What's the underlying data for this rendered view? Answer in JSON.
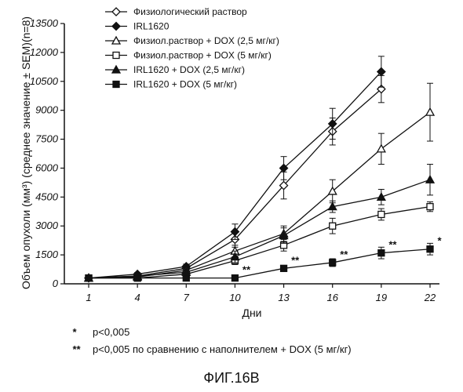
{
  "chart_data": {
    "type": "line",
    "xlabel": "Дни",
    "ylabel": "Объем опухоли (мм³) (среднее значение ± SEM)(n=8)",
    "x": [
      1,
      4,
      7,
      10,
      13,
      16,
      19,
      22
    ],
    "xticks": [
      "1",
      "4",
      "7",
      "10",
      "13",
      "16",
      "19",
      "22"
    ],
    "ylim": [
      0,
      13500
    ],
    "yticks": [
      "0",
      "1500",
      "3000",
      "4500",
      "6000",
      "7500",
      "9000",
      "10500",
      "12000",
      "13500"
    ],
    "legend_position": "top-left",
    "grid": false,
    "series": [
      {
        "name": "Физиологический раствор",
        "marker": "diamond-open",
        "values": [
          300,
          400,
          800,
          2300,
          5100,
          7900,
          10100,
          null
        ],
        "errors": [
          50,
          80,
          120,
          400,
          700,
          700,
          700,
          null
        ]
      },
      {
        "name": "IRL1620",
        "marker": "diamond-filled",
        "values": [
          300,
          500,
          900,
          2700,
          6000,
          8300,
          11000,
          null
        ],
        "errors": [
          50,
          80,
          120,
          400,
          600,
          800,
          800,
          null
        ]
      },
      {
        "name": "Физиол.раствор + DOX (2,5 мг/кг)",
        "marker": "triangle-open",
        "values": [
          300,
          350,
          700,
          1700,
          2600,
          4800,
          7000,
          8900
        ],
        "errors": [
          50,
          60,
          100,
          300,
          400,
          600,
          800,
          1500
        ]
      },
      {
        "name": "Физиол.раствор + DOX (5 мг/кг)",
        "marker": "square-open",
        "values": [
          300,
          300,
          500,
          1200,
          2000,
          3000,
          3600,
          4000
        ],
        "errors": [
          50,
          50,
          100,
          200,
          300,
          400,
          300,
          250
        ]
      },
      {
        "name": "IRL1620 + DOX (2,5 мг/кг)",
        "marker": "triangle-filled",
        "values": [
          300,
          400,
          600,
          1400,
          2500,
          4000,
          4500,
          5400
        ],
        "errors": [
          50,
          60,
          100,
          300,
          400,
          300,
          400,
          800
        ]
      },
      {
        "name": "IRL1620 + DOX (5 мг/кг)",
        "marker": "square-filled",
        "values": [
          300,
          300,
          300,
          300,
          800,
          1100,
          1600,
          1800
        ],
        "errors": [
          40,
          40,
          60,
          60,
          100,
          200,
          300,
          300
        ]
      }
    ],
    "annotations": [
      {
        "text": "**",
        "x": 10,
        "y": 300
      },
      {
        "text": "**",
        "x": 13,
        "y": 800
      },
      {
        "text": "**",
        "x": 16,
        "y": 1100
      },
      {
        "text": "**",
        "x": 19,
        "y": 1600
      },
      {
        "text": "*",
        "x": 22,
        "y": 1800
      }
    ]
  },
  "footnotes": [
    {
      "mark": "*",
      "text": "p<0,005"
    },
    {
      "mark": "**",
      "text": "p<0,005 по сравнению с наполнителем + DOX (5 мг/кг)"
    }
  ],
  "caption": "ФИГ.16B"
}
